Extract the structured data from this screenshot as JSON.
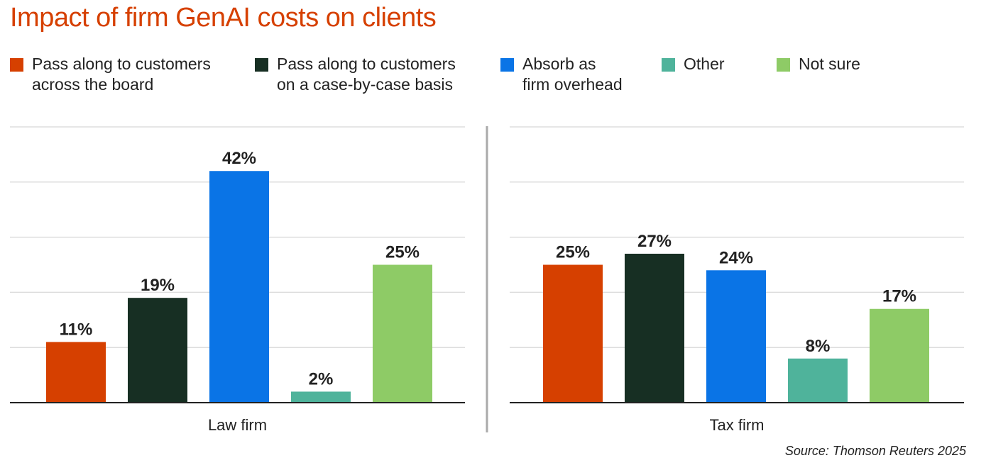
{
  "title": "Impact of firm GenAI costs on clients",
  "source": "Source: Thomson Reuters 2025",
  "colors": {
    "title": "#d64000",
    "grid": "#dddddd",
    "axis": "#222222",
    "divider": "#aaaaaa"
  },
  "chart_data": {
    "type": "bar",
    "title": "Impact of firm GenAI costs on clients",
    "ylim": [
      0,
      50
    ],
    "grid": true,
    "legend_position": "top",
    "series": [
      {
        "name": "Pass along to customers\nacross the board",
        "color": "#d64000"
      },
      {
        "name": "Pass along to customers\non a case-by-case basis",
        "color": "#172f23"
      },
      {
        "name": "Absorb as\nfirm overhead",
        "color": "#0a74e6"
      },
      {
        "name": "Other",
        "color": "#4fb39b"
      },
      {
        "name": "Not sure",
        "color": "#8ecb66"
      }
    ],
    "groups": [
      {
        "name": "Law firm",
        "values": [
          11,
          19,
          42,
          2,
          25
        ],
        "labels": [
          "11%",
          "19%",
          "42%",
          "2%",
          "25%"
        ]
      },
      {
        "name": "Tax firm",
        "values": [
          25,
          27,
          24,
          8,
          17
        ],
        "labels": [
          "25%",
          "27%",
          "24%",
          "8%",
          "17%"
        ]
      }
    ]
  }
}
